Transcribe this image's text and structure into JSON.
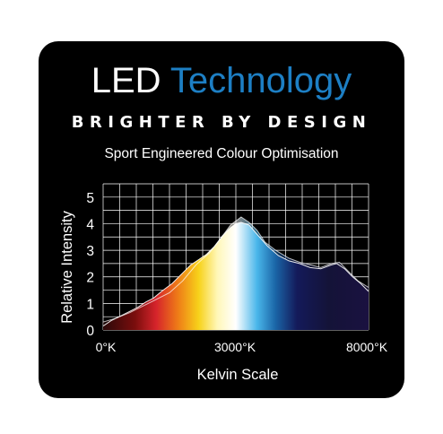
{
  "colors": {
    "background": "#000000",
    "title_primary": "#ffffff",
    "title_accent": "#1d7fc4",
    "grid": "#ffffff",
    "text": "#ffffff"
  },
  "header": {
    "title_part1": "LED",
    "title_part2": "Technology",
    "tagline": "BRIGHTER BY DESIGN",
    "subtitle": "Sport Engineered Colour Optimisation"
  },
  "chart_data": {
    "type": "area",
    "ylabel": "Relative Intensity",
    "xlabel": "Kelvin Scale",
    "x_tick_labels": [
      "0°K",
      "3000°K",
      "8000°K"
    ],
    "y_ticks": [
      0,
      1,
      2,
      3,
      4,
      5
    ],
    "ylim": [
      0,
      5.5
    ],
    "grid": true,
    "gradient_stops": [
      {
        "offset": 0.0,
        "color": "#2a0909"
      },
      {
        "offset": 0.12,
        "color": "#7a0d0d"
      },
      {
        "offset": 0.2,
        "color": "#d6242b"
      },
      {
        "offset": 0.28,
        "color": "#ee7a17"
      },
      {
        "offset": 0.36,
        "color": "#f7d21a"
      },
      {
        "offset": 0.43,
        "color": "#fff7b8"
      },
      {
        "offset": 0.5,
        "color": "#ffffff"
      },
      {
        "offset": 0.58,
        "color": "#49b6ea"
      },
      {
        "offset": 0.65,
        "color": "#1a64a6"
      },
      {
        "offset": 0.73,
        "color": "#141a5a"
      },
      {
        "offset": 0.85,
        "color": "#141338"
      },
      {
        "offset": 1.0,
        "color": "#1a1140"
      }
    ],
    "series": [
      {
        "values": [
          [
            0.0,
            0.15
          ],
          [
            0.03,
            0.35
          ],
          [
            0.06,
            0.5
          ],
          [
            0.1,
            0.7
          ],
          [
            0.13,
            0.85
          ],
          [
            0.16,
            1.05
          ],
          [
            0.19,
            1.2
          ],
          [
            0.22,
            1.45
          ],
          [
            0.26,
            1.75
          ],
          [
            0.3,
            2.15
          ],
          [
            0.33,
            2.45
          ],
          [
            0.36,
            2.65
          ],
          [
            0.39,
            2.85
          ],
          [
            0.42,
            3.15
          ],
          [
            0.45,
            3.55
          ],
          [
            0.48,
            3.85
          ],
          [
            0.5,
            4.0
          ],
          [
            0.52,
            4.05
          ],
          [
            0.55,
            3.95
          ],
          [
            0.58,
            3.6
          ],
          [
            0.62,
            3.15
          ],
          [
            0.66,
            2.8
          ],
          [
            0.7,
            2.6
          ],
          [
            0.74,
            2.5
          ],
          [
            0.78,
            2.35
          ],
          [
            0.82,
            2.3
          ],
          [
            0.86,
            2.45
          ],
          [
            0.88,
            2.5
          ],
          [
            0.91,
            2.3
          ],
          [
            0.94,
            2.0
          ],
          [
            0.97,
            1.75
          ],
          [
            1.0,
            1.45
          ]
        ]
      },
      {
        "values": [
          [
            0.0,
            0.3
          ],
          [
            0.05,
            0.45
          ],
          [
            0.1,
            0.65
          ],
          [
            0.15,
            0.9
          ],
          [
            0.2,
            1.15
          ],
          [
            0.25,
            1.4
          ],
          [
            0.3,
            1.85
          ],
          [
            0.35,
            2.45
          ],
          [
            0.4,
            2.9
          ],
          [
            0.44,
            3.4
          ],
          [
            0.48,
            3.95
          ],
          [
            0.52,
            4.25
          ],
          [
            0.55,
            4.05
          ],
          [
            0.58,
            3.75
          ],
          [
            0.61,
            3.3
          ],
          [
            0.65,
            3.0
          ],
          [
            0.7,
            2.7
          ],
          [
            0.74,
            2.55
          ],
          [
            0.78,
            2.45
          ],
          [
            0.82,
            2.35
          ],
          [
            0.86,
            2.5
          ],
          [
            0.89,
            2.55
          ],
          [
            0.92,
            2.25
          ],
          [
            0.96,
            1.85
          ],
          [
            1.0,
            1.6
          ]
        ]
      }
    ]
  }
}
